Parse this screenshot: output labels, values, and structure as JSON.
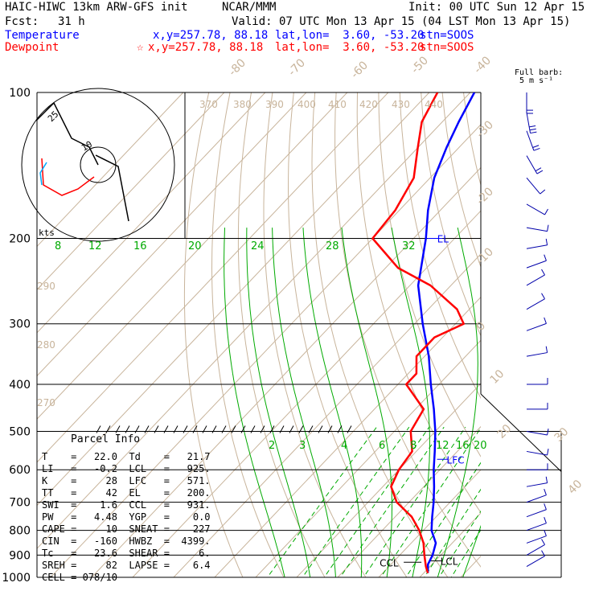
{
  "header": {
    "model": "HAIC-HIWC 13km ARW-GFS init",
    "center": "NCAR/MMM",
    "init": "Init: 00 UTC Sun 12 Apr 15",
    "fcst_label": "Fcst:",
    "fcst_value": "31 h",
    "valid": "Valid: 07 UTC Mon 13 Apr 15 (04 LST Mon 13 Apr 15)"
  },
  "traces": [
    {
      "name": "Temperature",
      "marker": "",
      "xy": "x,y=257.78, 88.18",
      "latlon": "lat,lon=  3.60, -53.20",
      "stn": "stn=SOOS",
      "color": "#0000ff"
    },
    {
      "name": "Dewpoint",
      "marker": "☆",
      "xy": "x,y=257.78, 88.18",
      "latlon": "lat,lon=  3.60, -53.20",
      "stn": "stn=SOOS",
      "color": "#ff0000"
    }
  ],
  "barb_legend": {
    "line1": "Full barb:",
    "line2": "5 m s⁻¹"
  },
  "hodograph": {
    "unit_label": "kts",
    "ring_labels": [
      "10",
      "25"
    ]
  },
  "parcel_info": {
    "title": "Parcel Info",
    "rows": [
      {
        "k1": "T",
        "v1": "22.0",
        "k2": "Td",
        "v2": "21.7"
      },
      {
        "k1": "LI",
        "v1": "-0.2",
        "k2": "LCL",
        "v2": "925."
      },
      {
        "k1": "K",
        "v1": "28",
        "k2": "LFC",
        "v2": "571."
      },
      {
        "k1": "TT",
        "v1": "42",
        "k2": "EL",
        "v2": "200."
      },
      {
        "k1": "SWI",
        "v1": "1.6",
        "k2": "CCL",
        "v2": "931."
      },
      {
        "k1": "PW",
        "v1": "4.48",
        "k2": "YGP",
        "v2": "0.0"
      },
      {
        "k1": "CAPE",
        "v1": "10",
        "k2": "SNEAT",
        "v2": "227"
      },
      {
        "k1": "CIN",
        "v1": "-160",
        "k2": "HWBZ",
        "v2": "4399."
      },
      {
        "k1": "Tc",
        "v1": "23.6",
        "k2": "SHEAR",
        "v2": "6."
      },
      {
        "k1": "SREH",
        "v1": "82",
        "k2": "LAPSE",
        "v2": "6.4"
      }
    ],
    "cell": "CELL = 078/10"
  },
  "chart_data": {
    "type": "line",
    "subtype": "skew-T log-p sounding",
    "y_axis": {
      "scale": "log",
      "unit": "hPa",
      "range": [
        1000,
        100
      ],
      "tick_labels": [
        "100",
        "200",
        "300",
        "400",
        "500",
        "600",
        "700",
        "800",
        "900",
        "1000"
      ]
    },
    "isotherm_labels": [
      "-80",
      "-70",
      "-60",
      "-50",
      "-40",
      "-30",
      "-20",
      "-10",
      "0",
      "10",
      "20",
      "30",
      "40"
    ],
    "theta_labels": [
      "370",
      "380",
      "390",
      "400",
      "410",
      "420",
      "430",
      "440",
      "290",
      "280",
      "270"
    ],
    "mixing_ratio_labels": [
      "8",
      "12",
      "16",
      "20",
      "24",
      "28",
      "32",
      "2",
      "3",
      "4",
      "6",
      "8",
      "12",
      "16",
      "20",
      "24"
    ],
    "colors": {
      "temperature": "#0000ff",
      "dewpoint": "#ff0000",
      "isotherm": "#c8b49b",
      "mixing": "#00aa00",
      "isobar": "#000000"
    },
    "series": [
      {
        "name": "Temperature",
        "points": [
          [
            980,
            21
          ],
          [
            940,
            19
          ],
          [
            900,
            18
          ],
          [
            850,
            16
          ],
          [
            800,
            12
          ],
          [
            750,
            9
          ],
          [
            700,
            6
          ],
          [
            650,
            2.5
          ],
          [
            600,
            -1.5
          ],
          [
            550,
            -5.5
          ],
          [
            500,
            -10
          ],
          [
            450,
            -15.5
          ],
          [
            400,
            -22
          ],
          [
            350,
            -29
          ],
          [
            300,
            -38
          ],
          [
            250,
            -48
          ],
          [
            200,
            -57
          ],
          [
            175,
            -63
          ],
          [
            150,
            -69
          ],
          [
            130,
            -73
          ],
          [
            115,
            -76
          ],
          [
            100,
            -79
          ]
        ]
      },
      {
        "name": "Dewpoint",
        "points": [
          [
            980,
            21
          ],
          [
            950,
            19
          ],
          [
            900,
            16
          ],
          [
            850,
            13
          ],
          [
            800,
            9
          ],
          [
            750,
            4
          ],
          [
            700,
            -3
          ],
          [
            650,
            -8
          ],
          [
            600,
            -10
          ],
          [
            550,
            -11
          ],
          [
            500,
            -16
          ],
          [
            450,
            -18
          ],
          [
            400,
            -28
          ],
          [
            380,
            -28
          ],
          [
            350,
            -32
          ],
          [
            320,
            -32
          ],
          [
            300,
            -28
          ],
          [
            280,
            -33
          ],
          [
            250,
            -45
          ],
          [
            230,
            -57
          ],
          [
            200,
            -70
          ],
          [
            175,
            -71
          ],
          [
            150,
            -74
          ],
          [
            130,
            -80
          ],
          [
            115,
            -85
          ],
          [
            100,
            -88
          ]
        ]
      }
    ],
    "annotations": [
      {
        "text": "EL",
        "p": 200,
        "t": -57
      },
      {
        "text": "LFC",
        "p": 571,
        "t": -3.5
      },
      {
        "text": "LCL",
        "p": 925,
        "t": 18.5
      },
      {
        "text": "CCL",
        "p": 931,
        "t": 18.5
      }
    ],
    "wind_profile": {
      "label": "Full barb: 5 m s-1",
      "levels": [
        {
          "p": 100,
          "dir": 180,
          "spd": 12
        },
        {
          "p": 110,
          "dir": 170,
          "spd": 14
        },
        {
          "p": 120,
          "dir": 160,
          "spd": 10
        },
        {
          "p": 135,
          "dir": 150,
          "spd": 8
        },
        {
          "p": 150,
          "dir": 140,
          "spd": 6
        },
        {
          "p": 170,
          "dir": 120,
          "spd": 5
        },
        {
          "p": 190,
          "dir": 100,
          "spd": 4
        },
        {
          "p": 210,
          "dir": 80,
          "spd": 5
        },
        {
          "p": 230,
          "dir": 70,
          "spd": 6
        },
        {
          "p": 250,
          "dir": 60,
          "spd": 5
        },
        {
          "p": 280,
          "dir": 60,
          "spd": 5
        },
        {
          "p": 310,
          "dir": 70,
          "spd": 4
        },
        {
          "p": 350,
          "dir": 80,
          "spd": 5
        },
        {
          "p": 400,
          "dir": 90,
          "spd": 4
        },
        {
          "p": 450,
          "dir": 90,
          "spd": 5
        },
        {
          "p": 500,
          "dir": 100,
          "spd": 5
        },
        {
          "p": 550,
          "dir": 100,
          "spd": 5
        },
        {
          "p": 600,
          "dir": 90,
          "spd": 5
        },
        {
          "p": 650,
          "dir": 80,
          "spd": 5
        },
        {
          "p": 700,
          "dir": 70,
          "spd": 5
        },
        {
          "p": 750,
          "dir": 70,
          "spd": 5
        },
        {
          "p": 800,
          "dir": 70,
          "spd": 5
        },
        {
          "p": 850,
          "dir": 70,
          "spd": 5
        },
        {
          "p": 900,
          "dir": 60,
          "spd": 5
        },
        {
          "p": 950,
          "dir": 60,
          "spd": 4
        }
      ]
    },
    "hodograph_track": [
      [
        0.0,
        0.0
      ],
      [
        -2,
        4
      ],
      [
        -6,
        6
      ],
      [
        -10,
        14
      ],
      [
        -14,
        10
      ],
      [
        -8,
        -4
      ],
      [
        -3,
        -10
      ],
      [
        2,
        -12
      ],
      [
        5,
        -14
      ]
    ]
  }
}
